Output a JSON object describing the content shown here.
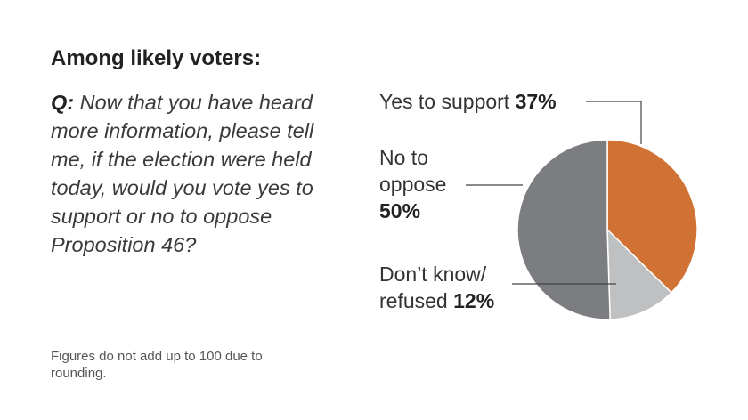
{
  "heading": "Among likely voters:",
  "question": {
    "prefix": "Q:",
    "text": "Now that you have heard more information, please tell me, if the election were held today, would you vote yes to support or no to oppose Proposition 46?"
  },
  "footnote": "Figures do not add up to 100 due to rounding.",
  "chart_data": {
    "type": "pie",
    "slices": [
      {
        "label": "Yes to support",
        "value": 37,
        "value_label": "37%",
        "color": "#d07233"
      },
      {
        "label": "Don’t know/ refused",
        "value": 12,
        "value_label": "12%",
        "color": "#bfc0c2"
      },
      {
        "label": "No to oppose",
        "value": 50,
        "value_label": "50%",
        "color": "#7b7d80"
      }
    ],
    "start_angle": "12 o'clock",
    "direction": "clockwise",
    "legend": "none",
    "labels": "callout lines"
  }
}
